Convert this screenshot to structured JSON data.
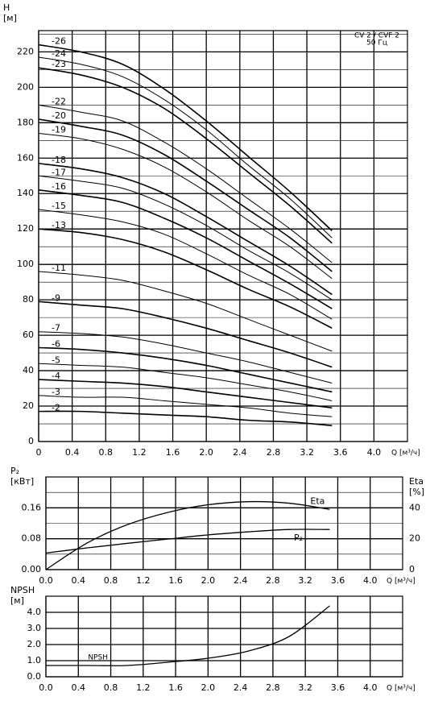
{
  "chart_data": [
    {
      "type": "line",
      "y_label": "H",
      "y_unit": "[м]",
      "x_label": "Q [м³/ч]",
      "annotations": [
        "CV 2 / CVF 2",
        "50 Гц"
      ],
      "xlim": [
        0,
        4.4
      ],
      "ylim": [
        0,
        232
      ],
      "grid": true,
      "minor_grid": true,
      "xticks": [
        0,
        0.4,
        0.8,
        1.2,
        1.6,
        {
          "value": 2,
          "label": "2.0"
        },
        2.4,
        2.8,
        3.2,
        3.6,
        {
          "value": 4,
          "label": "4.0"
        }
      ],
      "yticks": [
        0,
        20,
        40,
        60,
        80,
        100,
        120,
        140,
        160,
        180,
        200,
        220
      ],
      "x": [
        0,
        0.5,
        1,
        1.5,
        2,
        2.5,
        3,
        3.5
      ],
      "series": [
        {
          "name": "-26",
          "color": "#000000",
          "values": [
            224,
            220,
            213,
            199,
            181,
            161,
            141,
            119
          ]
        },
        {
          "name": "-24",
          "color": "#000000",
          "values": [
            217,
            213,
            206,
            193,
            176,
            156,
            137,
            115
          ]
        },
        {
          "name": "-23",
          "color": "#000000",
          "values": [
            211,
            207,
            200,
            188,
            171,
            152,
            133,
            112
          ]
        },
        {
          "name": "-22",
          "color": "#000000",
          "values": [
            190,
            186,
            181,
            169,
            154,
            137,
            120,
            101
          ]
        },
        {
          "name": "-20",
          "color": "#000000",
          "values": [
            182,
            178,
            173,
            162,
            147,
            131,
            115,
            96
          ]
        },
        {
          "name": "-19",
          "color": "#000000",
          "values": [
            174,
            171,
            165,
            155,
            141,
            125,
            110,
            92
          ]
        },
        {
          "name": "-18",
          "color": "#000000",
          "values": [
            157,
            154,
            149,
            140,
            127,
            113,
            99,
            83
          ]
        },
        {
          "name": "-17",
          "color": "#000000",
          "values": [
            150,
            147,
            143,
            134,
            122,
            108,
            95,
            80
          ]
        },
        {
          "name": "-16",
          "color": "#000000",
          "values": [
            142,
            139,
            135,
            126,
            115,
            102,
            89,
            75
          ]
        },
        {
          "name": "-15",
          "color": "#000000",
          "values": [
            131,
            128,
            124,
            117,
            106,
            94,
            83,
            69
          ]
        },
        {
          "name": "-13",
          "color": "#000000",
          "values": [
            120,
            118,
            114,
            107,
            97,
            86,
            76,
            64
          ]
        },
        {
          "name": "-11",
          "color": "#000000",
          "values": [
            96,
            94,
            91,
            85,
            78,
            69,
            60,
            51
          ]
        },
        {
          "name": "-9",
          "color": "#000000",
          "values": [
            79,
            77,
            75,
            70,
            64,
            57,
            50,
            42
          ]
        },
        {
          "name": "-7",
          "color": "#000000",
          "values": [
            62,
            61,
            59,
            55,
            50,
            45,
            39,
            33
          ]
        },
        {
          "name": "-6",
          "color": "#000000",
          "values": [
            53,
            52,
            50,
            47,
            43,
            38,
            33,
            28
          ]
        },
        {
          "name": "-5",
          "color": "#000000",
          "values": [
            44,
            43,
            42,
            39,
            36,
            32,
            28,
            23
          ]
        },
        {
          "name": "-4",
          "color": "#000000",
          "values": [
            35,
            34,
            33,
            31,
            28,
            25,
            22,
            19
          ]
        },
        {
          "name": "-3",
          "color": "#000000",
          "values": [
            26,
            25,
            25,
            23,
            21,
            19,
            16,
            14
          ]
        },
        {
          "name": "-2",
          "color": "#000000",
          "values": [
            17,
            17,
            16,
            15,
            14,
            12,
            11,
            9
          ]
        }
      ]
    },
    {
      "type": "line",
      "y_label": "P₂",
      "y_unit": "[кВт]",
      "y2_label": "Eta",
      "y2_unit": "[%]",
      "x_label": "Q [м³/ч]",
      "xlim": [
        0,
        4.4
      ],
      "ylim": [
        0,
        0.24
      ],
      "y2lim": [
        0,
        60
      ],
      "grid": true,
      "minor_grid": true,
      "xticks": [
        {
          "value": 0,
          "label": "0.0"
        },
        0.4,
        0.8,
        1.2,
        1.6,
        {
          "value": 2,
          "label": "2.0"
        },
        2.4,
        2.8,
        3.2,
        3.6,
        {
          "value": 4,
          "label": "4.0"
        }
      ],
      "yticks": [
        {
          "value": 0,
          "label": "0.00"
        },
        0.08,
        0.16
      ],
      "y2ticks": [
        0,
        20,
        40
      ],
      "x": [
        0,
        0.5,
        1,
        1.5,
        2,
        2.5,
        3,
        3.5
      ],
      "series": [
        {
          "name": "P₂",
          "color": "#000000",
          "axis": "y",
          "values": [
            0.043,
            0.056,
            0.068,
            0.079,
            0.09,
            0.098,
            0.104,
            0.104
          ]
        },
        {
          "name": "Eta",
          "color": "#000000",
          "axis": "y2",
          "values": [
            0,
            17,
            29,
            37,
            42,
            44,
            43,
            39
          ]
        }
      ]
    },
    {
      "type": "line",
      "y_label": "NPSH",
      "y_unit": "[м]",
      "x_label": "Q [м³/ч]",
      "xlim": [
        0,
        4.4
      ],
      "ylim": [
        0,
        5
      ],
      "grid": true,
      "minor_grid": false,
      "xticks": [
        {
          "value": 0,
          "label": "0.0"
        },
        0.4,
        0.8,
        1.2,
        1.6,
        {
          "value": 2,
          "label": "2.0"
        },
        2.4,
        2.8,
        3.2,
        3.6,
        {
          "value": 4,
          "label": "4.0"
        }
      ],
      "yticks": [
        {
          "value": 0,
          "label": "0.0"
        },
        {
          "value": 1,
          "label": "1.0"
        },
        {
          "value": 2,
          "label": "2.0"
        },
        {
          "value": 3,
          "label": "3.0"
        },
        {
          "value": 4,
          "label": "4.0"
        }
      ],
      "x": [
        0,
        0.5,
        1,
        1.5,
        2,
        2.5,
        3,
        3.5
      ],
      "series": [
        {
          "name": "NPSH",
          "color": "#000000",
          "values": [
            0.7,
            0.7,
            0.7,
            0.9,
            1.15,
            1.6,
            2.5,
            4.4
          ]
        }
      ]
    }
  ]
}
